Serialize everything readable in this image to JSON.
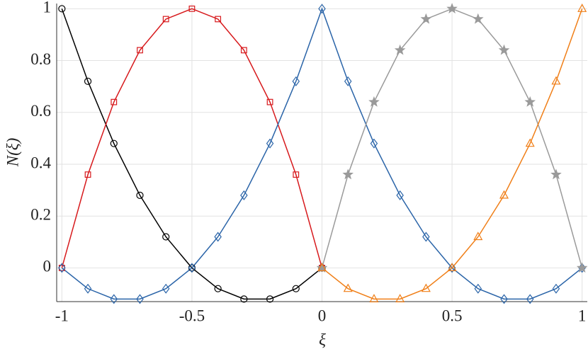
{
  "chart_data": {
    "type": "line",
    "x_label": "ξ",
    "y_label": "N(ξ)",
    "xlim": [
      -1.02,
      1.02
    ],
    "ylim": [
      -0.13,
      1.02
    ],
    "xticks": [
      -1,
      -0.5,
      0,
      0.5,
      1
    ],
    "yticks": [
      0,
      0.2,
      0.4,
      0.6,
      0.8,
      1
    ],
    "grid": true,
    "series": [
      {
        "color": "#000000",
        "marker": "circle",
        "x": [
          -1,
          -0.9,
          -0.8,
          -0.7,
          -0.6,
          -0.5,
          -0.4,
          -0.3,
          -0.2,
          -0.1,
          0
        ],
        "values": [
          1,
          0.72,
          0.48,
          0.28,
          0.12,
          0,
          -0.08,
          -0.12,
          -0.12,
          -0.08,
          0
        ]
      },
      {
        "color": "#d7191c",
        "marker": "square",
        "x": [
          -1,
          -0.9,
          -0.8,
          -0.7,
          -0.6,
          -0.5,
          -0.4,
          -0.3,
          -0.2,
          -0.1,
          0
        ],
        "values": [
          0,
          0.36,
          0.64,
          0.84,
          0.96,
          1,
          0.96,
          0.84,
          0.64,
          0.36,
          0
        ]
      },
      {
        "color": "#2a64a8",
        "marker": "diamond",
        "x": [
          -1,
          -0.9,
          -0.8,
          -0.7,
          -0.6,
          -0.5,
          -0.4,
          -0.3,
          -0.2,
          -0.1,
          0,
          0.1,
          0.2,
          0.3,
          0.4,
          0.5,
          0.6,
          0.7,
          0.8,
          0.9,
          1
        ],
        "values": [
          0,
          -0.08,
          -0.12,
          -0.12,
          -0.08,
          0,
          0.12,
          0.28,
          0.48,
          0.72,
          1,
          0.72,
          0.48,
          0.28,
          0.12,
          0,
          -0.08,
          -0.12,
          -0.12,
          -0.08,
          0
        ]
      },
      {
        "color": "#9a9a9a",
        "marker": "star",
        "x": [
          0,
          0.1,
          0.2,
          0.3,
          0.4,
          0.5,
          0.6,
          0.7,
          0.8,
          0.9,
          1
        ],
        "values": [
          0,
          0.36,
          0.64,
          0.84,
          0.96,
          1,
          0.96,
          0.84,
          0.64,
          0.36,
          0
        ]
      },
      {
        "color": "#f07f18",
        "marker": "triangle",
        "x": [
          0,
          0.1,
          0.2,
          0.3,
          0.4,
          0.5,
          0.6,
          0.7,
          0.8,
          0.9,
          1
        ],
        "values": [
          0,
          -0.08,
          -0.12,
          -0.12,
          -0.08,
          0,
          0.12,
          0.28,
          0.48,
          0.72,
          1
        ]
      }
    ]
  }
}
